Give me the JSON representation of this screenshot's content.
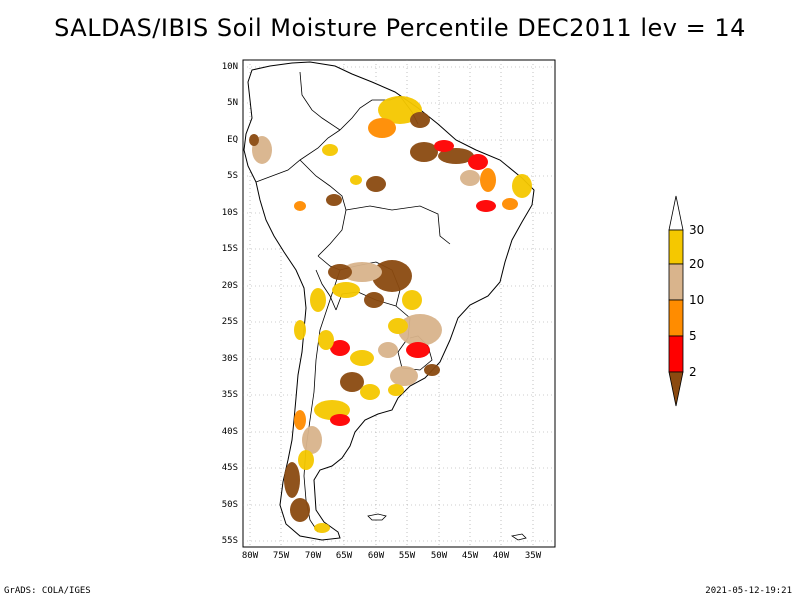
{
  "title": "SALDAS/IBIS Soil Moisture Percentile DEC2011 lev = 14",
  "lat_labels": [
    "10N",
    "5N",
    "EQ",
    "5S",
    "10S",
    "15S",
    "20S",
    "25S",
    "30S",
    "35S",
    "40S",
    "45S",
    "50S",
    "55S"
  ],
  "lon_labels": [
    "80W",
    "75W",
    "70W",
    "65W",
    "60W",
    "55W",
    "50W",
    "45W",
    "40W",
    "35W"
  ],
  "legend": {
    "labels": [
      "30",
      "20",
      "10",
      "5",
      "2"
    ],
    "colors": {
      "above30": "#ffffff",
      "b20_30": "#f5c800",
      "b10_20": "#d9b48c",
      "b5_10": "#ff8c00",
      "b2_5": "#ff0000",
      "below2": "#8b4a10"
    }
  },
  "footer_left": "GrADS: COLA/IGES",
  "footer_right": "2021-05-12-19:21"
}
